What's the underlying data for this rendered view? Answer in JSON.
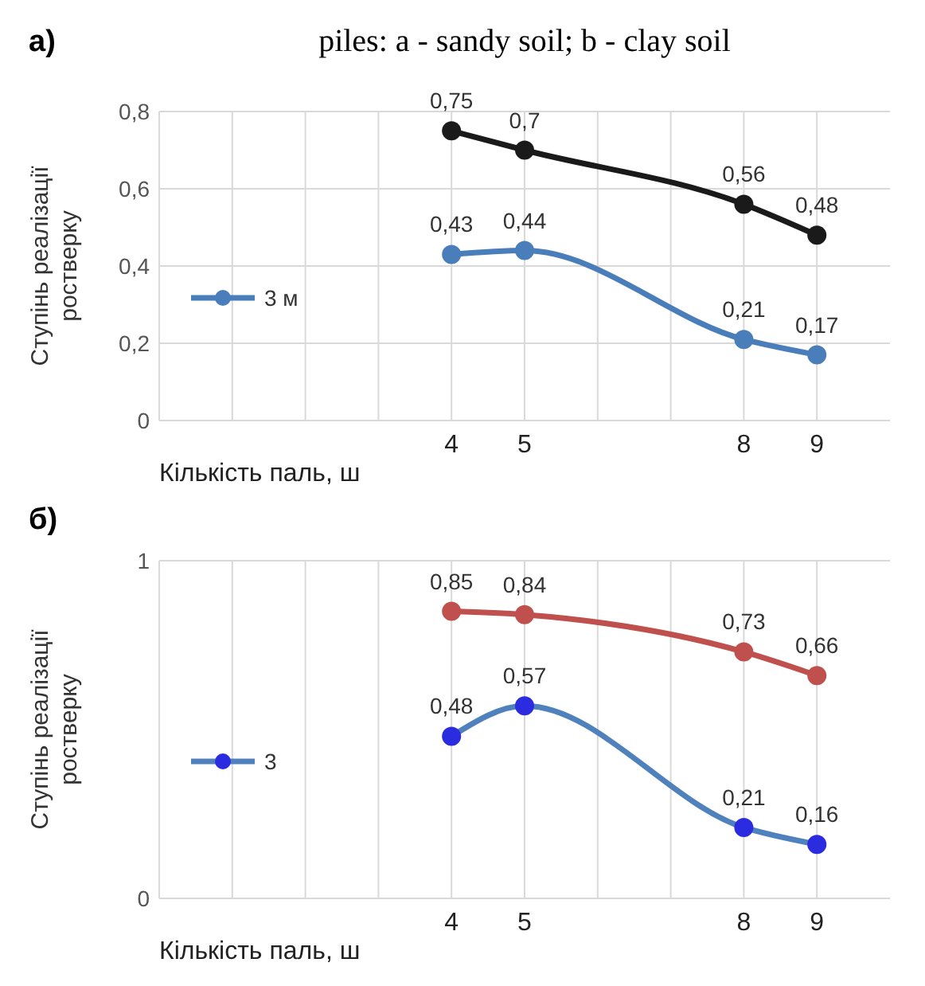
{
  "chart_data": [
    {
      "type": "line",
      "title": "piles: a - sandy soil; b - clay soil",
      "annotations": [
        "a)"
      ],
      "xlabel": "Кількість паль, ш",
      "ylabel": "Ступінь реалізації ростверку",
      "x": [
        4,
        5,
        8,
        9
      ],
      "xlim": [
        0,
        10
      ],
      "xticks": [
        {
          "value": 1,
          "label": null
        },
        {
          "value": 2,
          "label": null
        },
        {
          "value": 3,
          "label": null
        },
        4,
        5,
        {
          "value": 6,
          "label": null
        },
        {
          "value": 7,
          "label": null
        },
        8,
        9
      ],
      "ylim": [
        0,
        0.8
      ],
      "yticks": [
        {
          "value": 0,
          "label": "0"
        },
        {
          "value": 0.2,
          "label": "0,2"
        },
        {
          "value": 0.4,
          "label": "0,4"
        },
        {
          "value": 0.6,
          "label": "0,6"
        },
        {
          "value": 0.8,
          "label": "0,8"
        }
      ],
      "grid": true,
      "legend": "left",
      "marker": "circle",
      "line_style": "solid",
      "series": [
        {
          "color": "#1a1a1a",
          "values": [
            0.75,
            0.7,
            0.56,
            0.48
          ],
          "value_labels": [
            "0,75",
            "0,7",
            "0,56",
            "0,48"
          ]
        },
        {
          "name": "3 м",
          "color": "#4a7ebb",
          "values": [
            0.43,
            0.44,
            0.21,
            0.17
          ],
          "value_labels": [
            "0,43",
            "0,44",
            "0,21",
            "0,17"
          ]
        }
      ]
    },
    {
      "type": "line",
      "annotations": [
        "б)"
      ],
      "xlabel": "Кількість паль, ш",
      "ylabel": "Ступінь реалізації ростверку",
      "x": [
        4,
        5,
        8,
        9
      ],
      "xlim": [
        0,
        10
      ],
      "xticks": [
        {
          "value": 1,
          "label": null
        },
        {
          "value": 2,
          "label": null
        },
        {
          "value": 3,
          "label": null
        },
        4,
        5,
        {
          "value": 6,
          "label": null
        },
        {
          "value": 7,
          "label": null
        },
        8,
        9
      ],
      "ylim": [
        0,
        1
      ],
      "yticks": [
        0,
        1
      ],
      "grid": "x",
      "legend": "left",
      "marker": "circle",
      "line_style": "solid",
      "series": [
        {
          "color": "#c0504d",
          "values": [
            0.85,
            0.84,
            0.73,
            0.66
          ],
          "value_labels": [
            "0,85",
            "0,84",
            "0,73",
            "0,66"
          ]
        },
        {
          "name": "3",
          "color": "#4f81bd",
          "colors": [
            "#2b2be0",
            "#2b2be0",
            "#2b2be0",
            "#2b2be0"
          ],
          "values": [
            0.48,
            0.57,
            0.21,
            0.16
          ],
          "value_labels": [
            "0,48",
            "0,57",
            "0,21",
            "0,16"
          ]
        }
      ]
    }
  ]
}
